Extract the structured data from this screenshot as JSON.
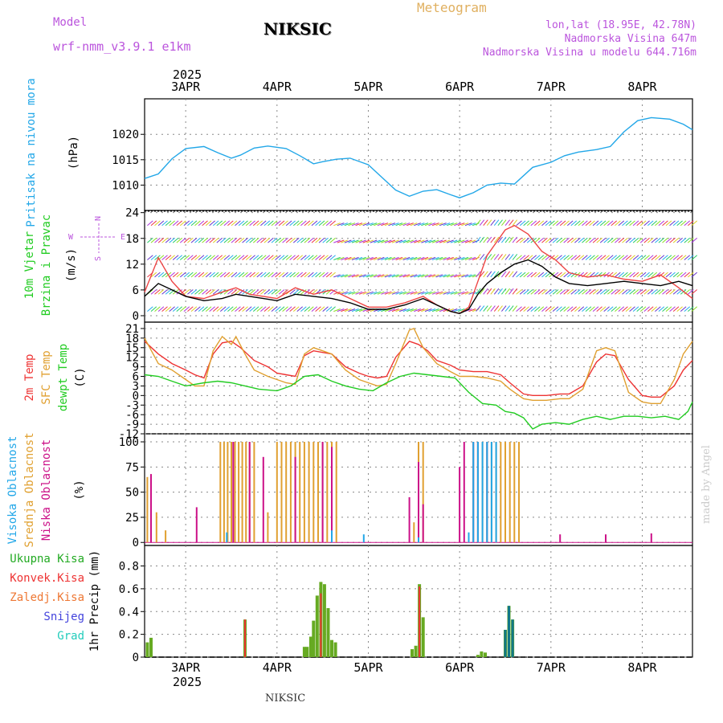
{
  "header": {
    "title": "NIKSIC",
    "model_label": "Model",
    "model_name": "wrf-nmm_v3.9.1  e1km",
    "meteogram_label": "Meteogram",
    "location": "lon,lat (18.95E, 42.78N)",
    "elevation": "Nadmorska Visina 647m",
    "model_elevation": "Nadmorska Visina u modelu 644.716m",
    "year_top": "2025",
    "year_bottom": "2025",
    "footer": "NIKSIC",
    "credit": "made by Angel"
  },
  "colors": {
    "pressure": "#22a7e8",
    "temp2m": "#ee3333",
    "sfc_temp": "#e0a030",
    "dewpoint": "#22cc22",
    "high_cloud": "#22a7e8",
    "mid_cloud": "#e0a030",
    "low_cloud": "#cc1188",
    "total_precip": "#22aa22",
    "convective": "#ee3333",
    "frozen": "#ee7733",
    "snow": "#4444dd",
    "hail": "#22ccbb",
    "wind_gust": "#ee4444",
    "wind_mean": "#000000",
    "compass": "#bb55dd"
  },
  "chart_data": {
    "type": "meteogram",
    "x_labels": [
      "3APR",
      "4APR",
      "5APR",
      "6APR",
      "7APR",
      "8APR"
    ],
    "x_start_day": 2.55,
    "x_end_day": 8.55,
    "panels": {
      "pressure": {
        "type": "line",
        "ylabel_main": "Pritisak na nivou mora",
        "ylabel_unit": "(hPa)",
        "yticks": [
          1010,
          1015,
          1020
        ],
        "ylim": [
          1005,
          1027
        ],
        "series": [
          {
            "days": [
              2.55,
              2.7,
              2.85,
              3.0,
              3.2,
              3.35,
              3.5,
              3.6,
              3.75,
              3.9,
              4.1,
              4.25,
              4.4,
              4.5,
              4.65,
              4.8,
              5.0,
              5.15,
              5.3,
              5.45,
              5.6,
              5.75,
              5.9,
              6.0,
              6.15,
              6.3,
              6.45,
              6.6,
              6.8,
              7.0,
              7.15,
              7.3,
              7.5,
              7.65,
              7.8,
              7.95,
              8.1,
              8.3,
              8.45,
              8.55
            ],
            "values": [
              1011.3,
              1012.2,
              1015.2,
              1017.2,
              1017.6,
              1016.4,
              1015.3,
              1015.9,
              1017.3,
              1017.7,
              1017.2,
              1015.8,
              1014.2,
              1014.6,
              1015.1,
              1015.3,
              1014.0,
              1011.5,
              1009.0,
              1007.8,
              1008.8,
              1009.1,
              1008.1,
              1007.5,
              1008.5,
              1010.0,
              1010.4,
              1010.2,
              1013.5,
              1014.5,
              1015.8,
              1016.5,
              1017.0,
              1017.6,
              1020.5,
              1022.7,
              1023.3,
              1023.0,
              1022.0,
              1020.9
            ]
          }
        ]
      },
      "wind": {
        "type": "line",
        "ylabel_main": "10m Vjetar",
        "ylabel_sub": "Brzina i Pravac",
        "ylabel_unit": "(m/s)",
        "compass_n": "N",
        "compass_e": "E",
        "compass_w": "W",
        "compass_s": "S",
        "yticks": [
          0,
          6,
          12,
          18,
          24
        ],
        "ylim": [
          -1.5,
          24.5
        ],
        "series": [
          {
            "name": "gust",
            "days": [
              2.55,
              2.7,
              2.85,
              3.0,
              3.2,
              3.4,
              3.55,
              3.7,
              3.85,
              4.0,
              4.2,
              4.4,
              4.6,
              4.8,
              5.0,
              5.2,
              5.4,
              5.6,
              5.75,
              5.9,
              6.0,
              6.1,
              6.2,
              6.3,
              6.4,
              6.5,
              6.6,
              6.75,
              6.9,
              7.05,
              7.2,
              7.4,
              7.6,
              7.8,
              8.0,
              8.2,
              8.4,
              8.55
            ],
            "values": [
              5.5,
              13.5,
              8.0,
              4.5,
              4.0,
              5.5,
              6.5,
              5.0,
              4.5,
              4.0,
              6.5,
              5.0,
              6.0,
              4.0,
              2.0,
              2.0,
              3.0,
              4.5,
              2.5,
              1.0,
              0.5,
              2.0,
              8.0,
              14.0,
              17.0,
              20.0,
              21.0,
              19.0,
              15.0,
              13.0,
              10.0,
              9.0,
              9.5,
              8.5,
              8.0,
              9.5,
              6.5,
              4.0
            ]
          },
          {
            "name": "mean",
            "days": [
              2.55,
              2.7,
              2.85,
              3.0,
              3.2,
              3.4,
              3.55,
              3.7,
              3.85,
              4.0,
              4.2,
              4.4,
              4.6,
              4.8,
              5.0,
              5.2,
              5.4,
              5.6,
              5.75,
              5.9,
              6.0,
              6.1,
              6.2,
              6.3,
              6.45,
              6.6,
              6.75,
              6.9,
              7.05,
              7.2,
              7.4,
              7.6,
              7.8,
              8.0,
              8.2,
              8.4,
              8.55
            ],
            "values": [
              4.5,
              7.5,
              6.0,
              4.5,
              3.5,
              4.0,
              5.0,
              4.5,
              4.0,
              3.5,
              5.0,
              4.5,
              4.0,
              3.0,
              1.5,
              1.5,
              2.5,
              4.0,
              2.5,
              1.0,
              0.5,
              1.5,
              5.0,
              7.5,
              10.0,
              12.0,
              13.0,
              11.5,
              9.0,
              7.5,
              7.0,
              7.5,
              8.0,
              7.5,
              7.0,
              8.0,
              7.0
            ]
          }
        ]
      },
      "temperature": {
        "type": "line",
        "ylabel_main": "2m Temp",
        "ylabel_sfc": "SFC Temp",
        "ylabel_dew": "dewpt Temp",
        "ylabel_unit": "(C)",
        "yticks": [
          -12,
          -9,
          -6,
          -3,
          0,
          3,
          6,
          9,
          12,
          15,
          18,
          21
        ],
        "ylim": [
          -12,
          23
        ],
        "series": [
          {
            "name": "2m Temp",
            "days": [
              2.55,
              2.7,
              2.85,
              3.0,
              3.1,
              3.2,
              3.3,
              3.4,
              3.5,
              3.6,
              3.75,
              3.9,
              4.0,
              4.1,
              4.2,
              4.3,
              4.4,
              4.5,
              4.6,
              4.75,
              4.9,
              5.0,
              5.1,
              5.2,
              5.3,
              5.45,
              5.55,
              5.65,
              5.75,
              5.9,
              6.0,
              6.15,
              6.3,
              6.45,
              6.55,
              6.7,
              6.8,
              6.95,
              7.1,
              7.2,
              7.35,
              7.5,
              7.6,
              7.7,
              7.85,
              8.0,
              8.1,
              8.2,
              8.35,
              8.45,
              8.55
            ],
            "values": [
              17,
              13,
              10,
              8,
              6.5,
              5.5,
              13,
              16.5,
              17,
              15,
              11,
              9,
              7,
              6.5,
              6,
              12.5,
              14,
              13.5,
              13,
              9,
              7,
              6,
              5.5,
              6,
              12,
              17,
              16,
              14,
              11,
              9.5,
              8,
              7.5,
              7.5,
              6.5,
              4,
              0.5,
              0,
              0,
              0.5,
              0.5,
              3,
              10.5,
              13,
              12.5,
              5,
              0,
              -0.5,
              -0.5,
              3,
              8,
              11
            ]
          },
          {
            "name": "SFC Temp",
            "days": [
              2.55,
              2.7,
              2.85,
              3.0,
              3.1,
              3.2,
              3.3,
              3.4,
              3.5,
              3.55,
              3.65,
              3.75,
              3.9,
              4.0,
              4.1,
              4.2,
              4.3,
              4.4,
              4.5,
              4.6,
              4.75,
              4.9,
              5.0,
              5.1,
              5.2,
              5.3,
              5.45,
              5.5,
              5.6,
              5.75,
              5.9,
              6.0,
              6.15,
              6.3,
              6.45,
              6.55,
              6.7,
              6.8,
              6.95,
              7.1,
              7.2,
              7.35,
              7.5,
              7.6,
              7.7,
              7.85,
              8.0,
              8.1,
              8.2,
              8.35,
              8.45,
              8.55
            ],
            "values": [
              18,
              10,
              8,
              5,
              3,
              3,
              14,
              18.5,
              16,
              18.5,
              13,
              8,
              6,
              5,
              4,
              3.5,
              13,
              15,
              14,
              13,
              8,
              5,
              4,
              3,
              3.5,
              10,
              20.5,
              21,
              15,
              10,
              7.5,
              6,
              6,
              5.5,
              4.5,
              2,
              -1,
              -1.5,
              -1.5,
              -1,
              -1,
              2,
              14,
              15,
              14,
              1,
              -2,
              -2.5,
              -2.5,
              5,
              13,
              17
            ]
          },
          {
            "name": "dewpt Temp",
            "days": [
              2.55,
              2.7,
              2.85,
              3.0,
              3.2,
              3.35,
              3.5,
              3.65,
              3.8,
              4.0,
              4.15,
              4.3,
              4.45,
              4.6,
              4.75,
              4.9,
              5.05,
              5.2,
              5.35,
              5.5,
              5.65,
              5.8,
              5.95,
              6.1,
              6.25,
              6.4,
              6.5,
              6.6,
              6.7,
              6.8,
              6.9,
              7.05,
              7.2,
              7.35,
              7.5,
              7.65,
              7.8,
              7.95,
              8.1,
              8.25,
              8.4,
              8.5,
              8.55
            ],
            "values": [
              6.5,
              6,
              4.5,
              3,
              4,
              4.5,
              4,
              3,
              2,
              1.5,
              3,
              6,
              6.5,
              4.5,
              3,
              2,
              1.5,
              4,
              6,
              7,
              6.5,
              6,
              5.5,
              1,
              -2.5,
              -3,
              -5,
              -5.5,
              -7,
              -10.5,
              -9,
              -8.5,
              -9,
              -7.5,
              -6.5,
              -7.5,
              -6.5,
              -6.5,
              -7,
              -6.5,
              -7.5,
              -5,
              -2
            ]
          }
        ]
      },
      "clouds": {
        "type": "bar",
        "ylabel_high": "Visoka Oblacnost",
        "ylabel_mid": "Srednja Oblacnost",
        "ylabel_low": "Niska Oblacnost",
        "ylabel_unit": "(%)",
        "yticks": [
          0,
          25,
          50,
          75,
          100
        ],
        "ylim": [
          -3,
          108
        ],
        "high": {
          "name": "Visoka Oblacnost",
          "days": [
            3.45,
            4.6,
            4.95,
            5.55,
            6.1,
            6.15,
            6.2,
            6.25,
            6.3,
            6.35,
            6.4
          ],
          "values": [
            10,
            12,
            8,
            5,
            10,
            100,
            100,
            100,
            100,
            100,
            100
          ]
        },
        "mid": {
          "name": "Srednja Oblacnost",
          "days": [
            2.58,
            2.68,
            2.78,
            3.38,
            3.42,
            3.46,
            3.5,
            3.54,
            3.58,
            3.62,
            3.66,
            3.7,
            3.75,
            3.9,
            4.0,
            4.05,
            4.1,
            4.15,
            4.2,
            4.25,
            4.3,
            4.35,
            4.4,
            4.45,
            4.5,
            4.55,
            4.6,
            4.65,
            5.5,
            5.55,
            5.6,
            6.15,
            6.2,
            6.25,
            6.3,
            6.35,
            6.4,
            6.45,
            6.5,
            6.55,
            6.6,
            6.65
          ],
          "values": [
            65,
            30,
            12,
            100,
            100,
            100,
            100,
            100,
            100,
            100,
            100,
            100,
            100,
            30,
            100,
            100,
            100,
            100,
            100,
            100,
            100,
            100,
            100,
            100,
            100,
            100,
            100,
            100,
            20,
            100,
            100,
            100,
            100,
            100,
            100,
            100,
            100,
            100,
            100,
            100,
            100,
            100
          ]
        },
        "low": {
          "name": "Niska Oblacnost",
          "days": [
            2.62,
            3.12,
            3.52,
            3.7,
            3.85,
            4.2,
            4.5,
            4.6,
            5.45,
            5.55,
            5.6,
            6.0,
            6.05,
            6.15,
            6.2,
            6.3,
            7.1,
            7.6,
            8.1
          ],
          "values": [
            68,
            35,
            100,
            100,
            85,
            85,
            100,
            95,
            45,
            80,
            38,
            75,
            100,
            100,
            100,
            100,
            8,
            8,
            9
          ]
        }
      },
      "precipitation": {
        "type": "bar",
        "ylabel_unit": "1hr Precip (mm)",
        "yticks": [
          0,
          0.2,
          0.4,
          0.6,
          0.8
        ],
        "ylim": [
          0,
          0.98
        ],
        "legend": [
          "Ukupna Kisa",
          "Konvek.Kisa",
          "Zaledj.Kisa",
          "Snijeg",
          "Grad"
        ],
        "total": {
          "name": "Ukupna Kisa",
          "days": [
            2.58,
            2.62,
            3.65,
            4.3,
            4.33,
            4.37,
            4.4,
            4.44,
            4.48,
            4.52,
            4.56,
            4.6,
            4.64,
            5.48,
            5.52,
            5.56,
            5.6,
            6.2,
            6.24,
            6.28,
            6.5,
            6.54,
            6.58
          ],
          "values": [
            0.13,
            0.17,
            0.33,
            0.09,
            0.09,
            0.18,
            0.32,
            0.54,
            0.66,
            0.64,
            0.43,
            0.15,
            0.13,
            0.07,
            0.1,
            0.64,
            0.35,
            0.02,
            0.05,
            0.04,
            0.24,
            0.45,
            0.33
          ]
        },
        "convective": {
          "name": "Konvek.Kisa",
          "days": [
            3.65,
            4.48,
            5.56
          ],
          "values": [
            0.33,
            0.56,
            0.62
          ]
        },
        "hail": {
          "name": "Grad",
          "days": [
            6.5,
            6.54,
            6.58
          ],
          "values": [
            0.24,
            0.45,
            0.33
          ]
        }
      }
    }
  }
}
